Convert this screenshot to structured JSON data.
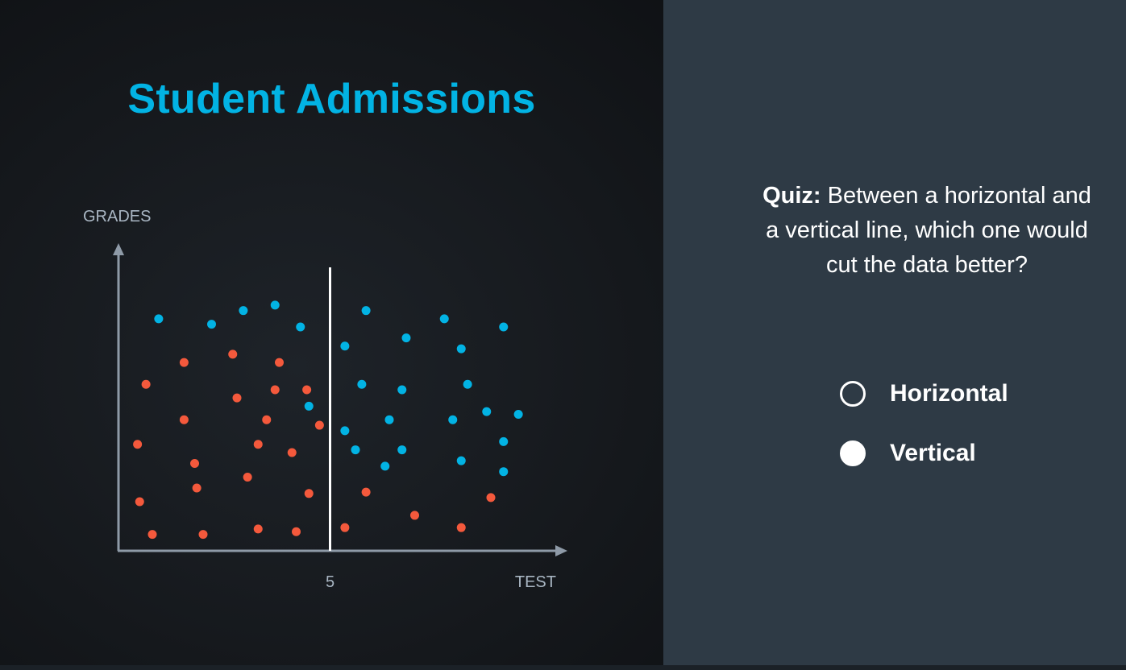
{
  "title": "Student Admissions",
  "chart_data": {
    "type": "scatter",
    "xlabel": "TEST",
    "ylabel": "GRADES",
    "xlim": [
      0,
      10
    ],
    "ylim": [
      0,
      10
    ],
    "x_ticks": [
      {
        "value": 5,
        "label": "5"
      }
    ],
    "vertical_line": {
      "x": 5,
      "y_top": 10
    },
    "colors": {
      "accepted": "#02b3e4",
      "rejected": "#f4593c",
      "axis": "#8e9aa7",
      "divider": "#ffffff"
    },
    "series": [
      {
        "color": "#02b3e4",
        "points": [
          [
            0.95,
            8.5
          ],
          [
            2.2,
            8.3
          ],
          [
            2.95,
            8.8
          ],
          [
            3.7,
            9.0
          ],
          [
            4.3,
            8.2
          ],
          [
            5.85,
            8.8
          ],
          [
            7.7,
            8.5
          ],
          [
            9.1,
            8.2
          ],
          [
            5.35,
            7.5
          ],
          [
            6.8,
            7.8
          ],
          [
            8.1,
            7.4
          ],
          [
            5.75,
            6.1
          ],
          [
            6.7,
            5.9
          ],
          [
            8.25,
            6.1
          ],
          [
            4.5,
            5.3
          ],
          [
            6.4,
            4.8
          ],
          [
            7.9,
            4.8
          ],
          [
            8.7,
            5.1
          ],
          [
            9.45,
            5.0
          ],
          [
            5.35,
            4.4
          ],
          [
            5.6,
            3.7
          ],
          [
            6.7,
            3.7
          ],
          [
            6.3,
            3.1
          ],
          [
            8.1,
            3.3
          ],
          [
            9.1,
            4.0
          ],
          [
            9.1,
            2.9
          ]
        ]
      },
      {
        "color": "#f4593c",
        "points": [
          [
            1.55,
            6.9
          ],
          [
            2.7,
            7.2
          ],
          [
            3.8,
            6.9
          ],
          [
            0.65,
            6.1
          ],
          [
            3.7,
            5.9
          ],
          [
            4.45,
            5.9
          ],
          [
            2.8,
            5.6
          ],
          [
            1.55,
            4.8
          ],
          [
            3.5,
            4.8
          ],
          [
            4.75,
            4.6
          ],
          [
            0.45,
            3.9
          ],
          [
            3.3,
            3.9
          ],
          [
            4.1,
            3.6
          ],
          [
            1.8,
            3.2
          ],
          [
            3.05,
            2.7
          ],
          [
            1.85,
            2.3
          ],
          [
            4.5,
            2.1
          ],
          [
            0.5,
            1.8
          ],
          [
            0.8,
            0.6
          ],
          [
            2.0,
            0.6
          ],
          [
            3.3,
            0.8
          ],
          [
            4.2,
            0.7
          ],
          [
            5.35,
            0.85
          ],
          [
            5.85,
            2.15
          ],
          [
            7.0,
            1.3
          ],
          [
            8.1,
            0.85
          ],
          [
            8.8,
            1.95
          ]
        ]
      }
    ]
  },
  "quiz": {
    "prefix": "Quiz:",
    "question": "Between a horizontal and a vertical line, which one would cut the data better?",
    "options": [
      {
        "label": "Horizontal",
        "selected": false
      },
      {
        "label": "Vertical",
        "selected": true
      }
    ]
  }
}
